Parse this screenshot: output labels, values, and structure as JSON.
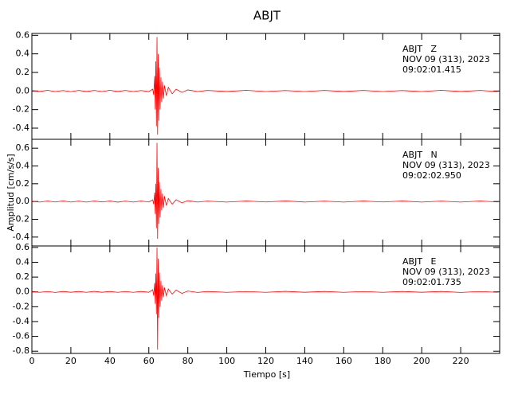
{
  "chart_data": [
    {
      "type": "line",
      "title": "ABJT",
      "annotations": [
        "ABJT   Z",
        "NOV 09 (313), 2023",
        "09:02:01.415"
      ],
      "xlim": [
        0,
        240
      ],
      "ylim": [
        -0.52,
        0.62
      ],
      "yticks": [
        0.6,
        0.4,
        0.2,
        {
          "value": 0,
          "label": "0.0"
        },
        -0.2,
        -0.4
      ],
      "x": [
        0,
        4,
        8,
        12,
        16,
        20,
        24,
        28,
        32,
        36,
        40,
        44,
        48,
        52,
        56,
        60,
        62,
        62.5,
        63,
        63.3,
        63.6,
        63.9,
        64.2,
        64.5,
        64.8,
        65.1,
        65.4,
        65.8,
        66.2,
        66.6,
        67,
        67.5,
        68,
        69,
        70,
        72,
        74,
        77,
        80,
        85,
        90,
        100,
        110,
        120,
        130,
        140,
        150,
        160,
        170,
        180,
        190,
        200,
        210,
        220,
        230,
        239
      ],
      "series": [
        {
          "color": "#ff0000",
          "values": [
            0.006,
            -0.005,
            0.007,
            -0.006,
            0.005,
            -0.007,
            0.006,
            -0.005,
            0.006,
            -0.006,
            0.007,
            -0.005,
            0.006,
            -0.006,
            0.005,
            -0.006,
            0.02,
            -0.04,
            0.16,
            -0.2,
            0.32,
            -0.38,
            0.58,
            -0.47,
            0.4,
            -0.32,
            0.25,
            -0.2,
            0.15,
            -0.12,
            0.1,
            -0.08,
            0.06,
            -0.05,
            0.04,
            -0.03,
            0.02,
            -0.015,
            0.012,
            -0.006,
            0.006,
            -0.005,
            0.007,
            -0.006,
            0.005,
            -0.006,
            0.006,
            -0.005,
            0.006,
            -0.006,
            0.005,
            -0.006,
            0.007,
            -0.005,
            0.006,
            -0.006
          ]
        }
      ]
    },
    {
      "type": "line",
      "ylabel": "Amplitud [cm/s/s]",
      "annotations": [
        "ABJT   N",
        "NOV 09 (313), 2023",
        "09:02:02.950"
      ],
      "xlim": [
        0,
        240
      ],
      "ylim": [
        -0.5,
        0.7
      ],
      "yticks": [
        0.6,
        0.4,
        0.2,
        {
          "value": 0,
          "label": "0.0"
        },
        -0.2,
        -0.4
      ],
      "x": [
        0,
        4,
        8,
        12,
        16,
        20,
        24,
        28,
        32,
        36,
        40,
        44,
        48,
        52,
        56,
        60,
        62,
        62.5,
        63,
        63.3,
        63.6,
        63.9,
        64.2,
        64.5,
        64.8,
        65.1,
        65.4,
        65.8,
        66.2,
        66.6,
        67,
        67.5,
        68,
        69,
        70,
        72,
        74,
        77,
        80,
        85,
        90,
        100,
        110,
        120,
        130,
        140,
        150,
        160,
        170,
        180,
        190,
        200,
        210,
        220,
        230,
        239
      ],
      "series": [
        {
          "color": "#ff0000",
          "values": [
            0.005,
            -0.006,
            0.006,
            -0.005,
            0.007,
            -0.006,
            0.005,
            -0.006,
            0.006,
            -0.005,
            0.006,
            -0.007,
            0.005,
            -0.006,
            0.006,
            -0.005,
            0.02,
            -0.03,
            0.1,
            -0.14,
            0.2,
            -0.3,
            0.66,
            -0.42,
            0.38,
            -0.25,
            0.22,
            -0.18,
            0.14,
            -0.1,
            0.09,
            -0.07,
            0.06,
            -0.045,
            0.035,
            -0.03,
            0.02,
            -0.015,
            0.01,
            -0.006,
            0.005,
            -0.006,
            0.006,
            -0.005,
            0.007,
            -0.006,
            0.005,
            -0.006,
            0.006,
            -0.005,
            0.006,
            -0.006,
            0.005,
            -0.006,
            0.006,
            -0.005
          ]
        }
      ]
    },
    {
      "type": "line",
      "xlabel": "Tiempo [s]",
      "annotations": [
        "ABJT   E",
        "NOV 09 (313), 2023",
        "09:02:01.735"
      ],
      "xlim": [
        0,
        240
      ],
      "ylim": [
        -0.83,
        0.62
      ],
      "xticks": [
        0,
        20,
        40,
        60,
        80,
        100,
        120,
        140,
        160,
        180,
        200,
        220
      ],
      "yticks": [
        0.6,
        0.4,
        0.2,
        {
          "value": 0,
          "label": "0.0"
        },
        -0.2,
        -0.4,
        -0.6,
        -0.8
      ],
      "x": [
        0,
        4,
        8,
        12,
        16,
        20,
        24,
        28,
        32,
        36,
        40,
        44,
        48,
        52,
        56,
        60,
        62,
        62.5,
        63,
        63.3,
        63.6,
        63.9,
        64.2,
        64.5,
        64.8,
        65.1,
        65.4,
        65.8,
        66.2,
        66.6,
        67,
        67.5,
        68,
        69,
        70,
        72,
        74,
        77,
        80,
        85,
        90,
        100,
        110,
        120,
        130,
        140,
        150,
        160,
        170,
        180,
        190,
        200,
        210,
        220,
        230,
        239
      ],
      "series": [
        {
          "color": "#ff0000",
          "values": [
            0.006,
            -0.006,
            0.005,
            -0.007,
            0.006,
            -0.005,
            0.006,
            -0.006,
            0.007,
            -0.005,
            0.006,
            -0.006,
            0.005,
            -0.006,
            0.006,
            -0.005,
            0.03,
            -0.05,
            0.12,
            -0.16,
            0.25,
            -0.3,
            0.6,
            -0.78,
            0.45,
            -0.35,
            0.26,
            -0.2,
            0.15,
            -0.12,
            0.09,
            -0.07,
            0.06,
            -0.05,
            0.04,
            -0.03,
            0.025,
            -0.02,
            0.012,
            -0.007,
            0.006,
            -0.006,
            0.005,
            -0.006,
            0.007,
            -0.005,
            0.006,
            -0.006,
            0.005,
            -0.006,
            0.006,
            -0.005,
            0.006,
            -0.007,
            0.005,
            -0.006
          ]
        }
      ]
    }
  ]
}
